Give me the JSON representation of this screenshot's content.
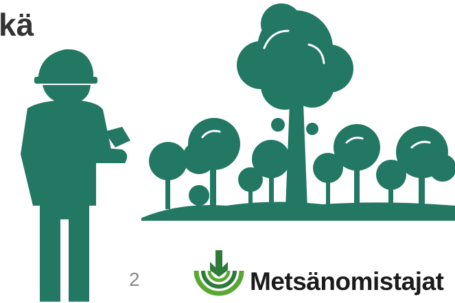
{
  "slide": {
    "title_fragment": "kä",
    "page_number": "2",
    "logo_text": "Metsänomistajat"
  }
}
